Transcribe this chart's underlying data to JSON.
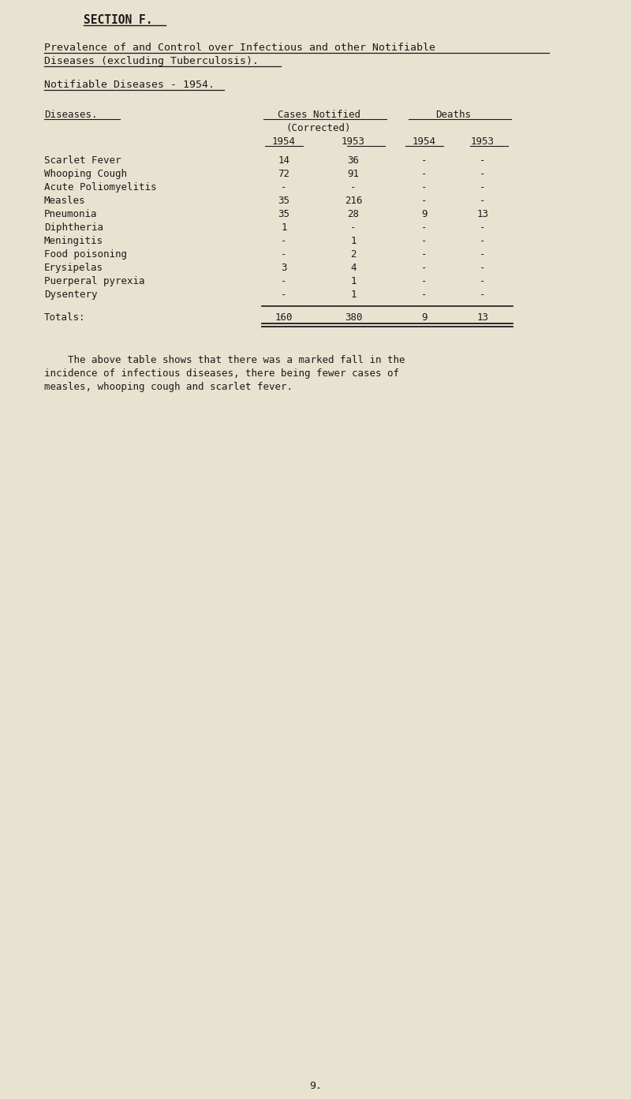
{
  "bg_color": "#e8e3d0",
  "text_color": "#1a1a1a",
  "section_title": "SECTION F.",
  "subtitle_line1": "Prevalence of and Control over Infectious and other Notifiable",
  "subtitle_line2": "Diseases (excluding Tuberculosis).",
  "sub_heading": "Notifiable Diseases - 1954.",
  "col_header_disease": "Diseases.",
  "col_header_cases": "Cases Notified",
  "col_header_corrected": "(Corrected)",
  "col_header_deaths": "Deaths",
  "col_year1": "1954",
  "col_year2": "1953",
  "col_year3": "1954",
  "col_year4": "1953",
  "diseases": [
    "Scarlet Fever",
    "Whooping Cough",
    "Acute Poliomyelitis",
    "Measles",
    "Pneumonia",
    "Diphtheria",
    "Meningitis",
    "Food poisoning",
    "Erysipelas",
    "Puerperal pyrexia",
    "Dysentery"
  ],
  "cases_1954": [
    "14",
    "72",
    "-",
    "35",
    "35",
    "1",
    "-",
    "-",
    "3",
    "-",
    "-"
  ],
  "cases_1953": [
    "36",
    "91",
    "-",
    "216",
    "28",
    "-",
    "1",
    "2",
    "4",
    "1",
    "1"
  ],
  "deaths_1954": [
    "-",
    "-",
    "-",
    "-",
    "9",
    "-",
    "-",
    "-",
    "-",
    "-",
    "-"
  ],
  "deaths_1953": [
    "-",
    "-",
    "-",
    "-",
    "13",
    "-",
    "-",
    "-",
    "-",
    "-",
    "-"
  ],
  "totals_label": "Totals:",
  "totals_cases_1954": "160",
  "totals_cases_1953": "380",
  "totals_deaths_1954": "9",
  "totals_deaths_1953": "13",
  "footnote_line1": "    The above table shows that there was a marked fall in the",
  "footnote_line2": "incidence of infectious diseases, there being fewer cases of",
  "footnote_line3": "measles, whooping cough and scarlet fever.",
  "page_number": "9.",
  "font_size_section": 10.5,
  "font_size_subtitle": 9.5,
  "font_size_body": 9.0,
  "font_size_page": 9.5
}
